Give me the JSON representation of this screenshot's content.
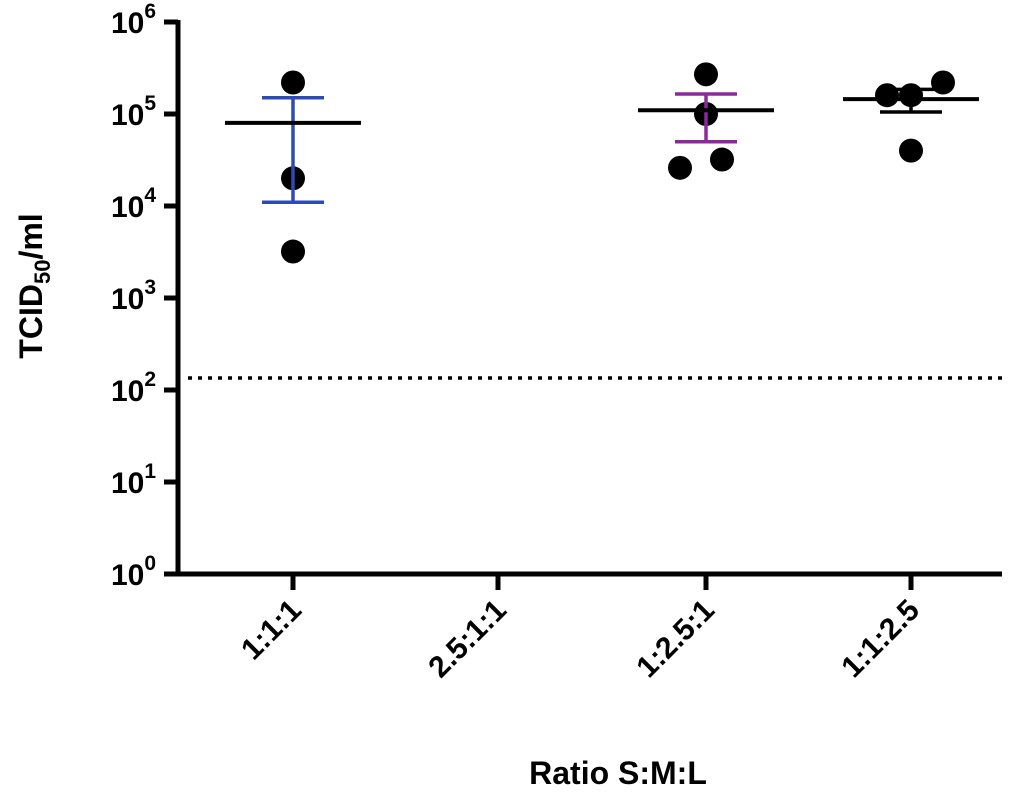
{
  "chart_data": {
    "type": "scatter",
    "xlabel": "Ratio S:M:L",
    "ylabel_main": "TCID",
    "ylabel_sub": "50",
    "ylabel_tail": "/ml",
    "yscale": "log",
    "ylim": [
      1,
      1000000
    ],
    "ytick_values": [
      1,
      10,
      100,
      1000,
      10000,
      100000,
      1000000
    ],
    "ytick_labels": [
      {
        "base": "10",
        "exp": "0"
      },
      {
        "base": "10",
        "exp": "1"
      },
      {
        "base": "10",
        "exp": "2"
      },
      {
        "base": "10",
        "exp": "3"
      },
      {
        "base": "10",
        "exp": "4"
      },
      {
        "base": "10",
        "exp": "5"
      },
      {
        "base": "10",
        "exp": "6"
      }
    ],
    "categories": [
      "1:1:1",
      "2.5:1:1",
      "1:2.5:1",
      "1:1:2.5"
    ],
    "detection_limit": 135,
    "grid": false,
    "groups": [
      {
        "category": "1:1:1",
        "points": [
          220000,
          20000,
          3200
        ],
        "mean": 80000,
        "err_low": 11000,
        "err_high": 150000,
        "color": "#2e4bb5"
      },
      {
        "category": "2.5:1:1",
        "points": [],
        "mean": null,
        "err_low": null,
        "err_high": null,
        "color": "#000000"
      },
      {
        "category": "1:2.5:1",
        "points": [
          270000,
          100000,
          26000,
          32000
        ],
        "mean": 110000,
        "err_low": 50000,
        "err_high": 165000,
        "color": "#8b2a9a"
      },
      {
        "category": "1:1:2.5",
        "points": [
          160000,
          160000,
          220000,
          40000
        ],
        "mean": 145000,
        "err_low": 105000,
        "err_high": 185000,
        "color": "#000000"
      }
    ]
  }
}
